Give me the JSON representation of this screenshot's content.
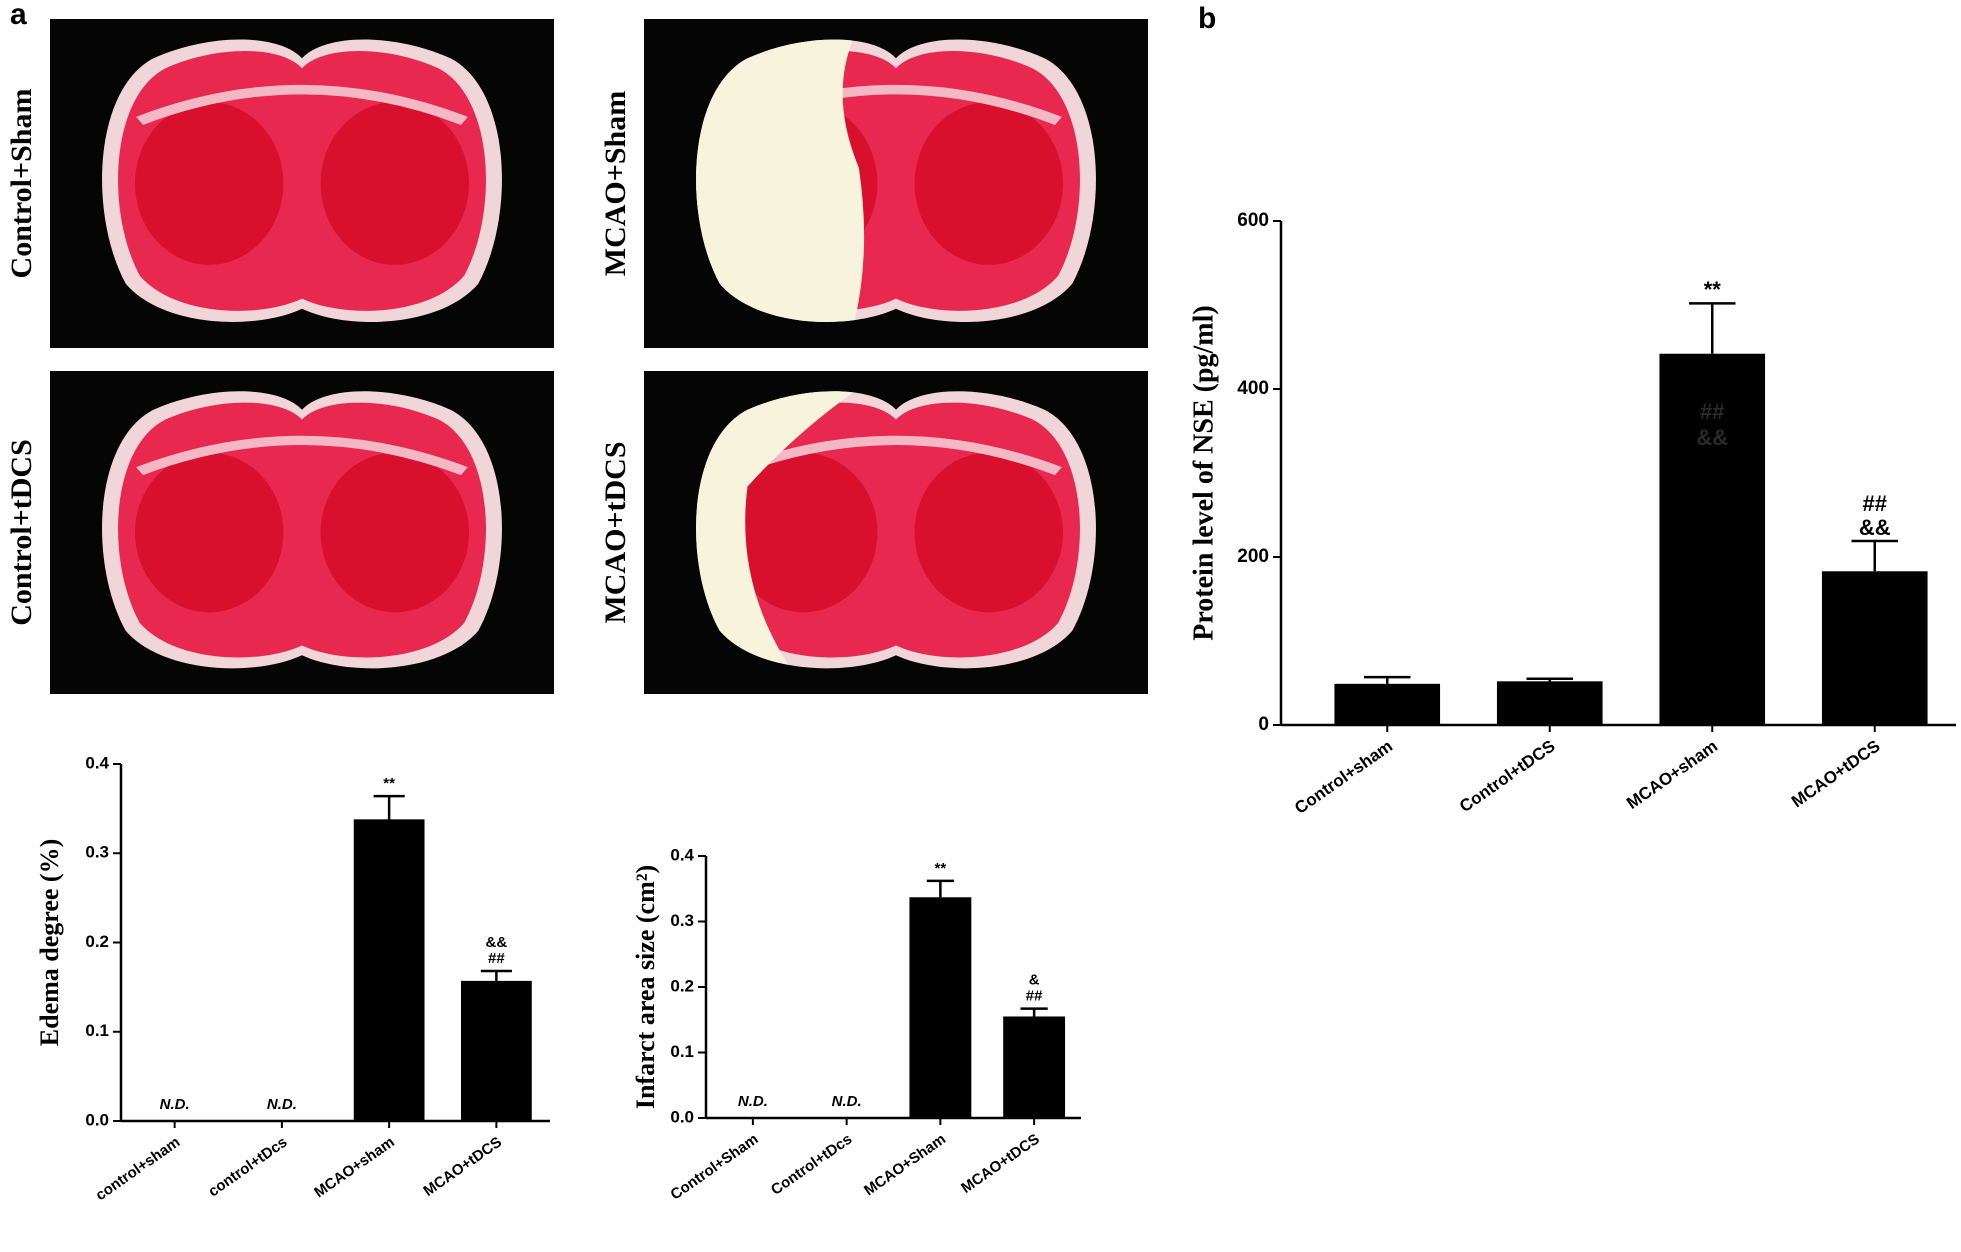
{
  "panel_labels": [
    "a",
    "b"
  ],
  "images": [
    {
      "label": "Control+Sham"
    },
    {
      "label": "MCAO+Sham"
    },
    {
      "label": "Control+tDCS"
    },
    {
      "label": "MCAO+tDCS"
    }
  ],
  "chart_data": [
    {
      "type": "bar",
      "y_label": "Edema degree (%)",
      "color": "#000000",
      "categories": [
        "control+sham",
        "control+tDcs",
        "MCAO+sham",
        "MCAO+tDCS"
      ],
      "values": [
        null,
        null,
        0.338,
        0.157
      ],
      "errors": [
        null,
        null,
        0.026,
        0.011
      ],
      "annotations": [
        [
          "N.D."
        ],
        [
          "N.D."
        ],
        [
          "**"
        ],
        [
          "&&",
          "##"
        ]
      ],
      "ylim": [
        0,
        0.4
      ],
      "yticks": [
        {
          "value": 0,
          "label": "0.0"
        },
        0.1,
        0.2,
        0.3,
        0.4
      ]
    },
    {
      "type": "bar",
      "y_label": "Infarct  area size  (cm²)",
      "color": "#000000",
      "categories": [
        "Control+Sham",
        "Control+tDcs",
        "MCAO+Sham",
        "MCAO+tDCS"
      ],
      "values": [
        null,
        null,
        0.337,
        0.155
      ],
      "errors": [
        null,
        null,
        0.025,
        0.012
      ],
      "annotations": [
        [
          "N.D."
        ],
        [
          "N.D."
        ],
        [
          "**"
        ],
        [
          "&",
          "##"
        ]
      ],
      "ylim": [
        0,
        0.4
      ],
      "yticks": [
        {
          "value": 0,
          "label": "0.0"
        },
        0.1,
        0.2,
        0.3,
        0.4
      ]
    },
    {
      "type": "bar",
      "y_label": "Protein level of NSE (pg/ml)",
      "color": "#000000",
      "categories": [
        "Control+sham",
        "Control+tDCS",
        "MCAO+sham",
        "MCAO+tDCS"
      ],
      "values": [
        49,
        52,
        442,
        183
      ],
      "errors": [
        8,
        3,
        60,
        36
      ],
      "annotations": [
        [],
        [],
        [
          "**"
        ],
        [
          "##",
          "&&"
        ]
      ],
      "inner_annotations": [
        [],
        [],
        [
          "##",
          "&&"
        ],
        []
      ],
      "ylim": [
        0,
        600
      ],
      "yticks": [
        0,
        200,
        400,
        600
      ]
    }
  ]
}
